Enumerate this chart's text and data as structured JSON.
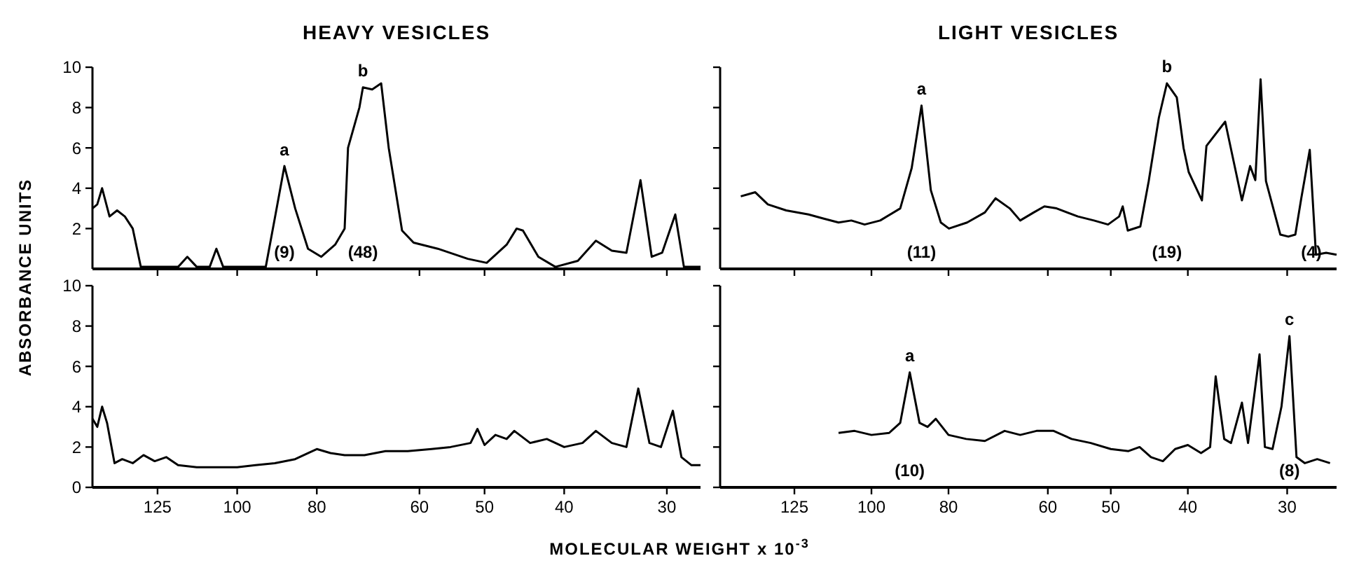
{
  "chart_data": [
    {
      "type": "line",
      "title": "HEAVY VESICLES",
      "ylabel": "ABSORBANCE UNITS",
      "log": "x",
      "xlim": [
        150,
        27.3
      ],
      "ylim": [
        0,
        10
      ],
      "xticks": [
        125,
        100,
        80,
        60,
        50,
        40,
        30
      ],
      "yticks": [
        2,
        4,
        6,
        8,
        10
      ],
      "tick_labels": "y",
      "grid": false,
      "marker": "none",
      "line_style": "solid",
      "series": [
        {
          "color": "#000000",
          "x": [
            150,
            148,
            146,
            143,
            140,
            137,
            134,
            131,
            125,
            118,
            115,
            112,
            108,
            106,
            104,
            100,
            95,
            92.3,
            90,
            87.6,
            85,
            82,
            79,
            76,
            74,
            73.3,
            71,
            70.3,
            68.5,
            66.8,
            65.4,
            63,
            61,
            57,
            52.4,
            49.7,
            47,
            45.7,
            44.9,
            43,
            41,
            38.5,
            36.6,
            35,
            33.6,
            32.3,
            31.3,
            30.4,
            29.3,
            28.6,
            27.3
          ],
          "values": [
            3.0,
            3.2,
            4.0,
            2.6,
            2.9,
            2.6,
            2.0,
            0.1,
            0.1,
            0.1,
            0.6,
            0.1,
            0.1,
            1.0,
            0.1,
            0.1,
            0.1,
            0.1,
            2.5,
            5.1,
            3.0,
            1.0,
            0.6,
            1.2,
            2.0,
            6.0,
            8.0,
            9.0,
            8.9,
            9.2,
            6.0,
            1.9,
            1.3,
            1.0,
            0.5,
            0.3,
            1.2,
            2.0,
            1.9,
            0.6,
            0.1,
            0.4,
            1.4,
            0.9,
            0.8,
            4.4,
            0.6,
            0.8,
            2.7,
            0.1,
            0.1
          ]
        }
      ],
      "annotations": [
        {
          "text": "a",
          "x": 87.6,
          "y": 5.1
        },
        {
          "text": "b",
          "x": 70.3,
          "y": 9.0
        },
        "(9)",
        "(48)"
      ]
    },
    {
      "type": "line",
      "title": "LIGHT VESICLES",
      "log": "x",
      "xlim": [
        155,
        26
      ],
      "ylim": [
        0,
        10
      ],
      "xticks": [
        125,
        100,
        80,
        60,
        50,
        40,
        30
      ],
      "yticks": [
        2,
        4,
        6,
        8,
        10
      ],
      "tick_labels": false,
      "grid": false,
      "marker": "none",
      "line_style": "solid",
      "series": [
        {
          "color": "#000000",
          "x": [
            146,
            143,
            140,
            135,
            128,
            120,
            115,
            110,
            106,
            102,
            97.5,
            92,
            89,
            86.5,
            84.2,
            81.8,
            79.9,
            75.8,
            72,
            69.8,
            67,
            65,
            62.5,
            60.6,
            58.5,
            55,
            52.5,
            50.4,
            48.8,
            48.3,
            47.6,
            45.9,
            44.8,
            43.5,
            42.5,
            41.3,
            40.5,
            39.9,
            38.4,
            37.9,
            35.9,
            34.8,
            34.2,
            33.4,
            32.9,
            32.4,
            31.9,
            30.6,
            29.9,
            29.3,
            28.8,
            28.1,
            27.6,
            26.8,
            26
          ],
          "values": [
            3.6,
            3.7,
            3.8,
            3.2,
            2.9,
            2.7,
            2.5,
            2.3,
            2.4,
            2.2,
            2.4,
            3.0,
            5.0,
            8.1,
            3.9,
            2.3,
            2.0,
            2.3,
            2.8,
            3.5,
            3.0,
            2.4,
            2.8,
            3.1,
            3.0,
            2.6,
            2.4,
            2.2,
            2.6,
            3.1,
            1.9,
            2.1,
            4.35,
            7.5,
            9.2,
            8.5,
            6.0,
            4.8,
            3.4,
            6.1,
            7.3,
            4.8,
            3.4,
            5.1,
            4.4,
            9.4,
            4.35,
            1.7,
            1.6,
            1.7,
            3.5,
            5.9,
            0.7,
            0.8,
            0.7
          ]
        }
      ],
      "annotations": [
        {
          "text": "a",
          "x": 86.5,
          "y": 8.1
        },
        {
          "text": "b",
          "x": 42.5,
          "y": 9.2
        },
        "(11)",
        "(19)",
        "(4)"
      ]
    },
    {
      "type": "line",
      "xlabel": "MOLECULAR WEIGHT x 10$^{-3}$",
      "log": "x",
      "xlim": [
        150,
        27.3
      ],
      "ylim": [
        0,
        10
      ],
      "xticks": [
        125,
        100,
        80,
        60,
        50,
        40,
        30
      ],
      "yticks": [
        0,
        2,
        4,
        6,
        8,
        10
      ],
      "grid": false,
      "marker": "none",
      "line_style": "solid",
      "series": [
        {
          "color": "#000000",
          "x": [
            150,
            148,
            146,
            144,
            141,
            138,
            134,
            130,
            126,
            122,
            118,
            112,
            105,
            100,
            95,
            90,
            85,
            82,
            80,
            77,
            74,
            70,
            66,
            62,
            58,
            55,
            52,
            51,
            50,
            48.5,
            47,
            46,
            44,
            42,
            40,
            38,
            36.6,
            35,
            33.6,
            32.5,
            31.5,
            30.5,
            29.5,
            28.8,
            28,
            27.3
          ],
          "values": [
            3.4,
            3.0,
            4.0,
            3.2,
            1.2,
            1.4,
            1.2,
            1.6,
            1.3,
            1.5,
            1.1,
            1.0,
            1.0,
            1.0,
            1.1,
            1.2,
            1.4,
            1.7,
            1.9,
            1.7,
            1.6,
            1.6,
            1.8,
            1.8,
            1.9,
            2.0,
            2.2,
            2.9,
            2.1,
            2.6,
            2.4,
            2.8,
            2.2,
            2.4,
            2.0,
            2.2,
            2.8,
            2.2,
            2.0,
            4.9,
            2.2,
            2.0,
            3.8,
            1.5,
            1.1,
            1.1
          ]
        }
      ]
    },
    {
      "type": "line",
      "log": "x",
      "xlim": [
        155,
        26
      ],
      "ylim": [
        0,
        10
      ],
      "xticks": [
        125,
        100,
        80,
        60,
        50,
        40,
        30
      ],
      "yticks": [
        0,
        2,
        4,
        6,
        8,
        10
      ],
      "tick_labels": "x",
      "grid": false,
      "marker": "none",
      "line_style": "solid",
      "series": [
        {
          "color": "#000000",
          "x": [
            110,
            105,
            100,
            95,
            92,
            89.5,
            87,
            85,
            83,
            80,
            76,
            72,
            68,
            65,
            62,
            59,
            56,
            53,
            50,
            47.5,
            46,
            44.5,
            43,
            41.5,
            40,
            38.5,
            37.5,
            36.9,
            36,
            35.3,
            34.2,
            33.6,
            32.5,
            32,
            31.3,
            30.5,
            29.8,
            29.2,
            28.5,
            27.5,
            26.5
          ],
          "values": [
            2.7,
            2.8,
            2.6,
            2.7,
            3.2,
            5.7,
            3.2,
            3.0,
            3.4,
            2.6,
            2.4,
            2.3,
            2.8,
            2.6,
            2.8,
            2.8,
            2.4,
            2.2,
            1.9,
            1.8,
            2.0,
            1.5,
            1.3,
            1.9,
            2.1,
            1.7,
            2.0,
            5.5,
            2.4,
            2.2,
            4.2,
            2.2,
            6.6,
            2.0,
            1.9,
            4.0,
            7.5,
            1.5,
            1.2,
            1.4,
            1.2
          ]
        }
      ],
      "annotations": [
        {
          "text": "a",
          "x": 89.5,
          "y": 5.7
        },
        {
          "text": "c",
          "x": 29.8,
          "y": 7.5
        },
        "(10)",
        "(8)"
      ]
    }
  ]
}
